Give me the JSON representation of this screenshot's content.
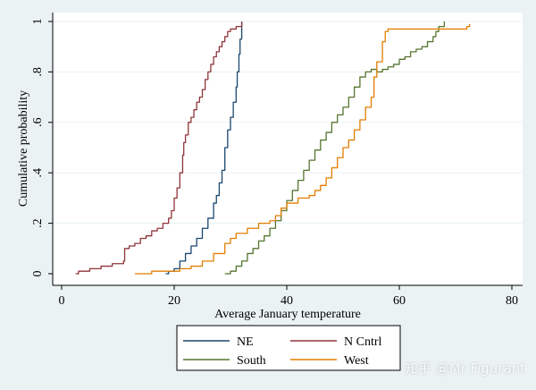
{
  "chart_data": {
    "type": "line",
    "step": true,
    "title": "",
    "xlabel": "Average January temperature",
    "ylabel": "Cumulative probability",
    "xlim": [
      0,
      80
    ],
    "ylim": [
      0,
      1
    ],
    "xticks": [
      0,
      20,
      40,
      60,
      80
    ],
    "yticks": [
      0,
      0.2,
      0.4,
      0.6,
      0.8,
      1
    ],
    "xtick_labels": [
      "0",
      "20",
      "40",
      "60",
      "80"
    ],
    "ytick_labels": [
      "0",
      ".2",
      ".4",
      ".6",
      ".8",
      "1"
    ],
    "grid": "horizontal",
    "legend_position": "bottom",
    "series": [
      {
        "name": "NE",
        "color": "#1a476f",
        "points": [
          [
            18.5,
            0.0
          ],
          [
            19,
            0.01
          ],
          [
            20,
            0.02
          ],
          [
            21,
            0.05
          ],
          [
            22,
            0.08
          ],
          [
            23,
            0.11
          ],
          [
            24,
            0.14
          ],
          [
            25,
            0.18
          ],
          [
            26,
            0.22
          ],
          [
            27,
            0.28
          ],
          [
            27.5,
            0.31
          ],
          [
            28,
            0.36
          ],
          [
            28.5,
            0.41
          ],
          [
            29,
            0.5
          ],
          [
            29.5,
            0.57
          ],
          [
            30,
            0.62
          ],
          [
            30.5,
            0.68
          ],
          [
            31,
            0.74
          ],
          [
            31.2,
            0.8
          ],
          [
            31.5,
            0.87
          ],
          [
            31.7,
            0.93
          ],
          [
            32,
            1.0
          ]
        ]
      },
      {
        "name": "N Cntrl",
        "color": "#90353b",
        "points": [
          [
            2.5,
            0.0
          ],
          [
            3,
            0.01
          ],
          [
            5,
            0.02
          ],
          [
            7,
            0.03
          ],
          [
            9,
            0.04
          ],
          [
            11,
            0.05
          ],
          [
            11.2,
            0.1
          ],
          [
            12,
            0.11
          ],
          [
            13,
            0.12
          ],
          [
            14,
            0.14
          ],
          [
            15,
            0.15
          ],
          [
            16,
            0.17
          ],
          [
            17,
            0.18
          ],
          [
            18,
            0.2
          ],
          [
            19,
            0.22
          ],
          [
            19.5,
            0.25
          ],
          [
            20,
            0.3
          ],
          [
            20.5,
            0.34
          ],
          [
            21,
            0.4
          ],
          [
            21.5,
            0.47
          ],
          [
            21.7,
            0.52
          ],
          [
            22,
            0.55
          ],
          [
            22.5,
            0.6
          ],
          [
            23,
            0.62
          ],
          [
            23.5,
            0.65
          ],
          [
            24,
            0.68
          ],
          [
            24.5,
            0.7
          ],
          [
            25,
            0.73
          ],
          [
            25.5,
            0.77
          ],
          [
            26,
            0.8
          ],
          [
            26.5,
            0.83
          ],
          [
            27,
            0.86
          ],
          [
            27.5,
            0.88
          ],
          [
            28,
            0.9
          ],
          [
            28.5,
            0.92
          ],
          [
            29,
            0.94
          ],
          [
            29.5,
            0.96
          ],
          [
            30,
            0.97
          ],
          [
            31,
            0.98
          ],
          [
            32,
            1.0
          ]
        ]
      },
      {
        "name": "South",
        "color": "#55752f",
        "points": [
          [
            29,
            0.0
          ],
          [
            30,
            0.01
          ],
          [
            31,
            0.03
          ],
          [
            32,
            0.05
          ],
          [
            33,
            0.08
          ],
          [
            34,
            0.1
          ],
          [
            35,
            0.13
          ],
          [
            36,
            0.15
          ],
          [
            37,
            0.18
          ],
          [
            38,
            0.21
          ],
          [
            39,
            0.25
          ],
          [
            40,
            0.29
          ],
          [
            41,
            0.33
          ],
          [
            42,
            0.37
          ],
          [
            43,
            0.41
          ],
          [
            44,
            0.45
          ],
          [
            45,
            0.49
          ],
          [
            46,
            0.53
          ],
          [
            47,
            0.56
          ],
          [
            48,
            0.6
          ],
          [
            49,
            0.63
          ],
          [
            50,
            0.66
          ],
          [
            51,
            0.7
          ],
          [
            52,
            0.74
          ],
          [
            53,
            0.78
          ],
          [
            54,
            0.8
          ],
          [
            55,
            0.81
          ],
          [
            56,
            0.8
          ],
          [
            57,
            0.81
          ],
          [
            58,
            0.82
          ],
          [
            59,
            0.83
          ],
          [
            60,
            0.85
          ],
          [
            61,
            0.86
          ],
          [
            62,
            0.88
          ],
          [
            63,
            0.89
          ],
          [
            64,
            0.9
          ],
          [
            65,
            0.92
          ],
          [
            66,
            0.94
          ],
          [
            66.5,
            0.96
          ],
          [
            67,
            0.98
          ],
          [
            68,
            1.0
          ]
        ]
      },
      {
        "name": "West",
        "color": "#e37e00",
        "points": [
          [
            13,
            0.0
          ],
          [
            16,
            0.01
          ],
          [
            19,
            0.01
          ],
          [
            21,
            0.02
          ],
          [
            23,
            0.03
          ],
          [
            25,
            0.05
          ],
          [
            27,
            0.08
          ],
          [
            29,
            0.12
          ],
          [
            30,
            0.14
          ],
          [
            31,
            0.16
          ],
          [
            33,
            0.18
          ],
          [
            35,
            0.2
          ],
          [
            37,
            0.21
          ],
          [
            38,
            0.23
          ],
          [
            39,
            0.26
          ],
          [
            40,
            0.28
          ],
          [
            42,
            0.3
          ],
          [
            44,
            0.31
          ],
          [
            45,
            0.33
          ],
          [
            46,
            0.35
          ],
          [
            47,
            0.38
          ],
          [
            48,
            0.42
          ],
          [
            49,
            0.46
          ],
          [
            50,
            0.5
          ],
          [
            51,
            0.53
          ],
          [
            52,
            0.57
          ],
          [
            53,
            0.61
          ],
          [
            54,
            0.66
          ],
          [
            55,
            0.7
          ],
          [
            55.5,
            0.78
          ],
          [
            56,
            0.84
          ],
          [
            57,
            0.92
          ],
          [
            57.5,
            0.96
          ],
          [
            58,
            0.97
          ],
          [
            62,
            0.97
          ],
          [
            68,
            0.97
          ],
          [
            72,
            0.98
          ],
          [
            72.5,
            0.99
          ]
        ]
      }
    ]
  },
  "watermark": "知乎 @Mr Figurant"
}
